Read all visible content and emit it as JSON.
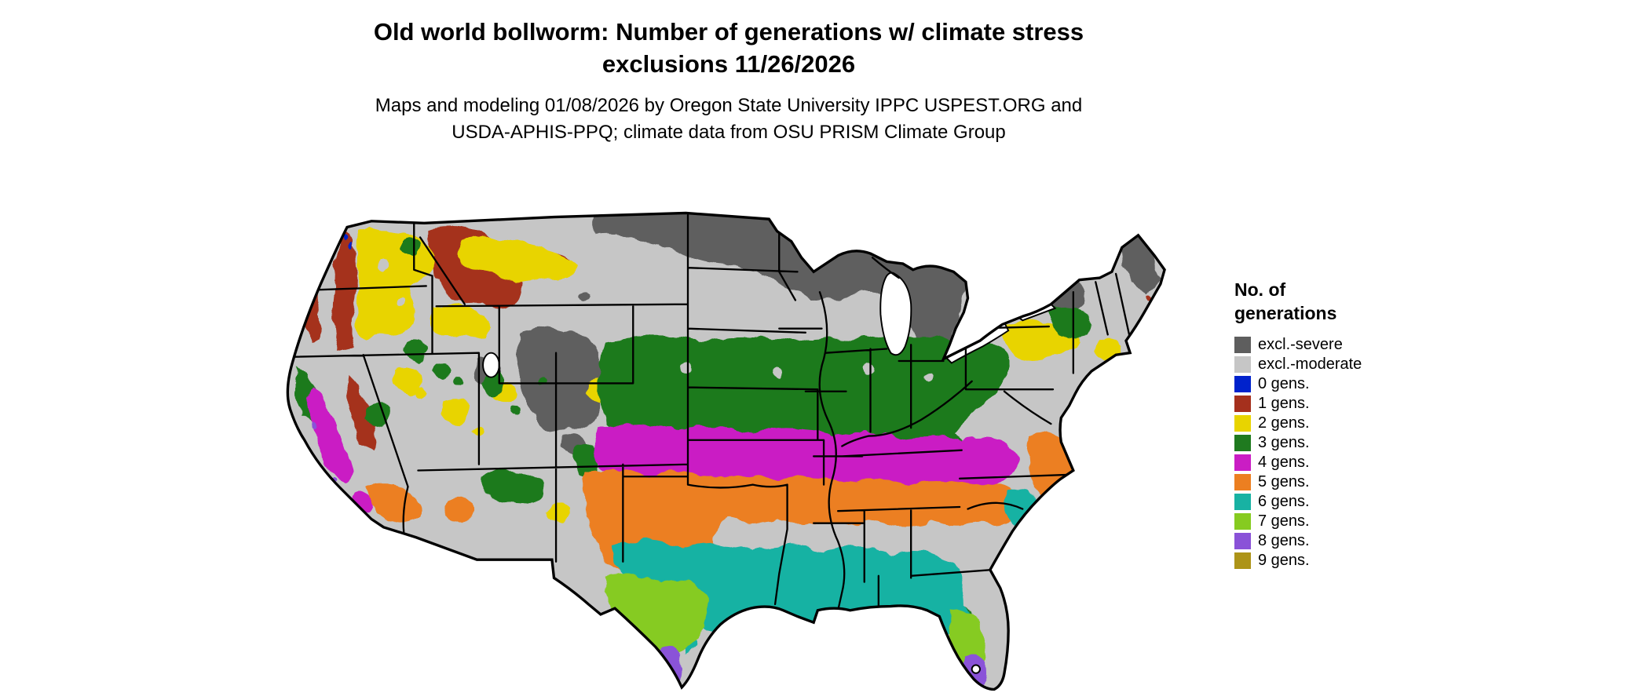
{
  "title": {
    "line1": "Old world bollworm: Number of generations w/ climate stress",
    "line2": "exclusions 11/26/2026"
  },
  "subtitle": {
    "line1": "Maps and modeling 01/08/2026 by Oregon State University IPPC USPEST.ORG and",
    "line2": "USDA-APHIS-PPQ; climate data from OSU PRISM Climate Group"
  },
  "legend": {
    "title_line1": "No. of",
    "title_line2": "generations",
    "items": [
      {
        "key": "severe",
        "label": "excl.-severe",
        "color": "#5e5e5e"
      },
      {
        "key": "moderate",
        "label": "excl.-moderate",
        "color": "#c6c6c6"
      },
      {
        "key": "g0",
        "label": "0 gens.",
        "color": "#0022cc"
      },
      {
        "key": "g1",
        "label": "1 gens.",
        "color": "#a5301d"
      },
      {
        "key": "g2",
        "label": "2 gens.",
        "color": "#e8d400"
      },
      {
        "key": "g3",
        "label": "3 gens.",
        "color": "#1f7a1f"
      },
      {
        "key": "g4",
        "label": "4 gens.",
        "color": "#ca1dc4"
      },
      {
        "key": "g5",
        "label": "5 gens.",
        "color": "#ec7f21"
      },
      {
        "key": "g6",
        "label": "6 gens.",
        "color": "#18b2a3"
      },
      {
        "key": "g7",
        "label": "7 gens.",
        "color": "#86cb20"
      },
      {
        "key": "g8",
        "label": "8 gens.",
        "color": "#8a52d8"
      },
      {
        "key": "g9",
        "label": "9 gens.",
        "color": "#ad9418"
      }
    ]
  }
}
